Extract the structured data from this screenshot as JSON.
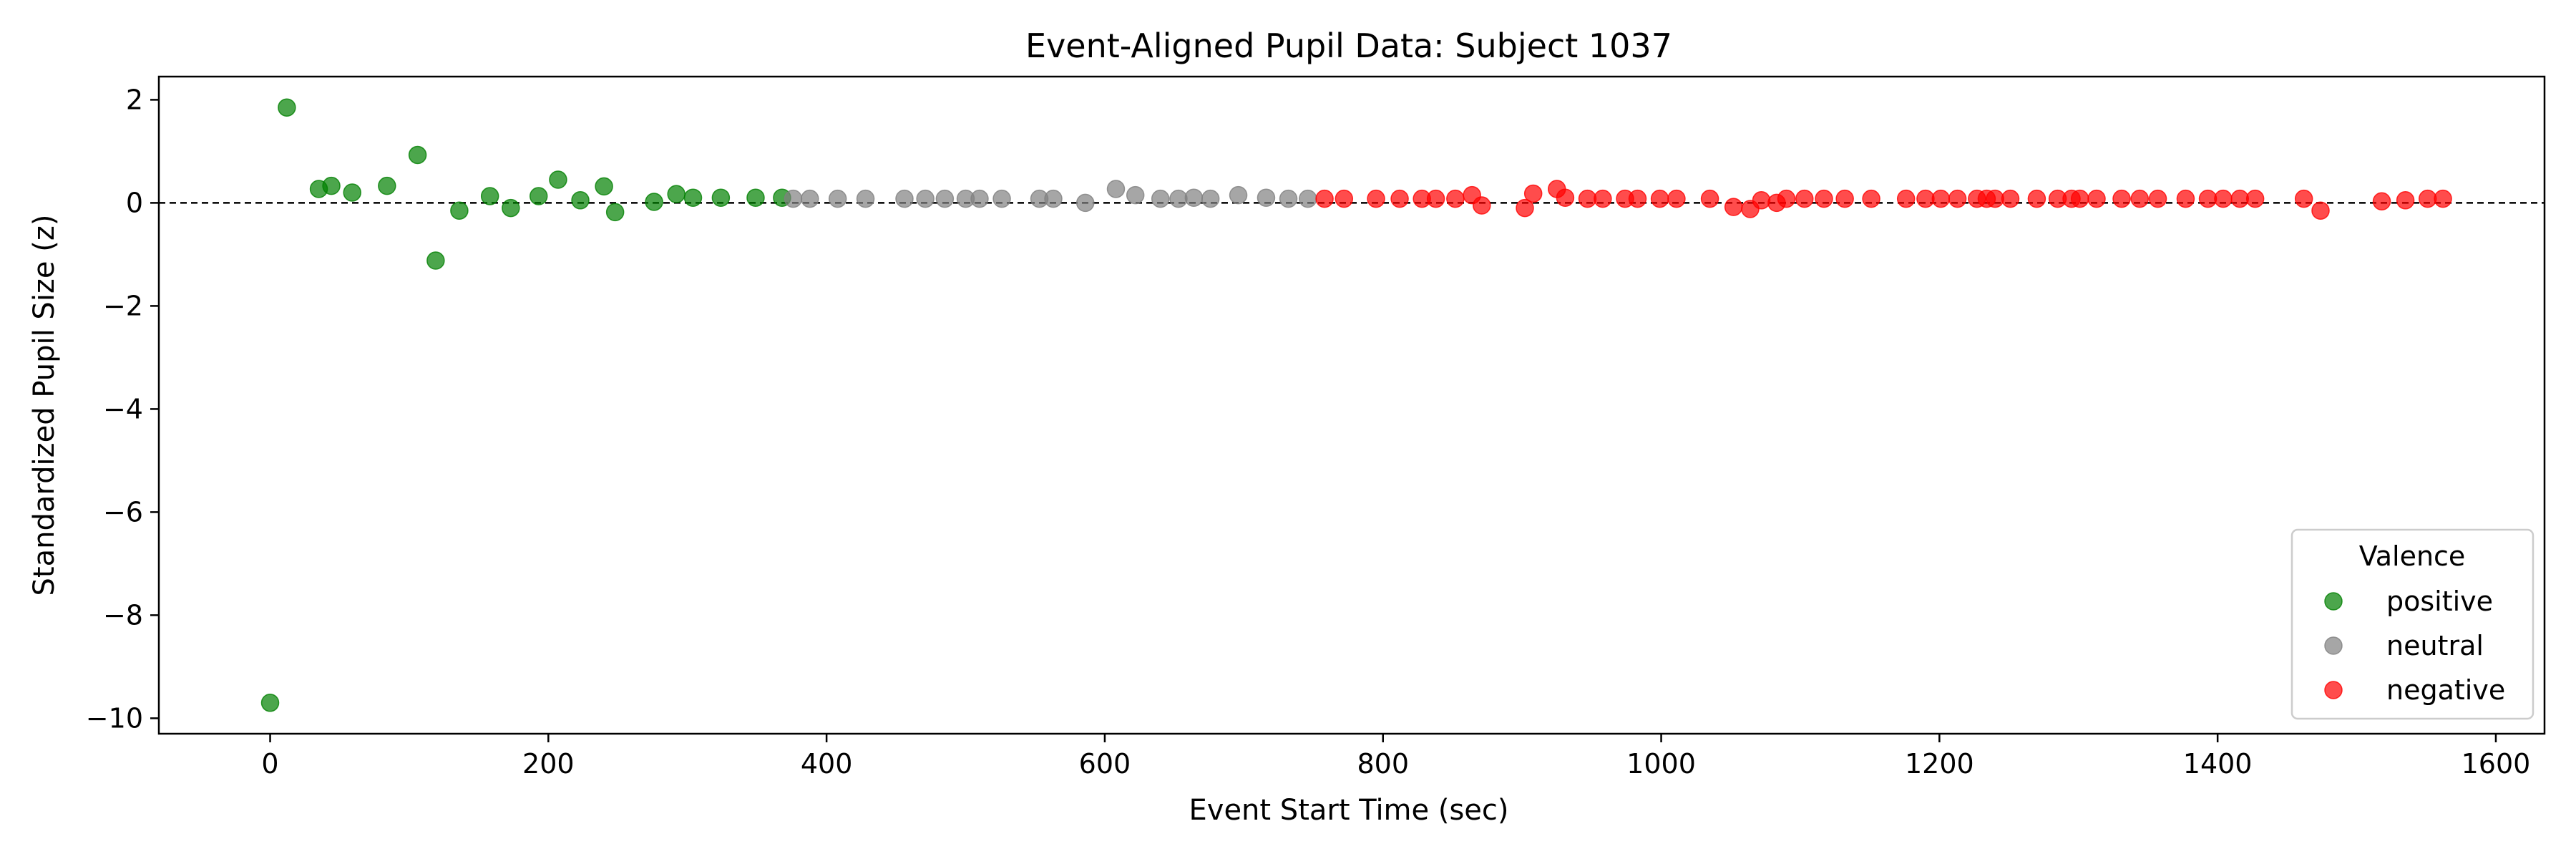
{
  "chart_data": {
    "type": "scatter",
    "title": "Event-Aligned Pupil Data: Subject 1037",
    "xlabel": "Event Start Time (sec)",
    "ylabel": "Standardized Pupil Size (z)",
    "xlim": [
      -80,
      1635
    ],
    "ylim": [
      -10.3,
      2.45
    ],
    "xticks": [
      0,
      200,
      400,
      600,
      800,
      1000,
      1200,
      1400,
      1600
    ],
    "yticks": [
      2,
      0,
      -2,
      -4,
      -6,
      -8,
      -10
    ],
    "grid": false,
    "reference_line": {
      "y": 0,
      "style": "dashed",
      "color": "#000000"
    },
    "legend": {
      "title": "Valence",
      "placement": "lower-right"
    },
    "series": [
      {
        "name": "positive",
        "color": "#008000",
        "x": [
          0,
          12,
          35,
          44,
          59,
          84,
          106,
          119,
          136,
          158,
          173,
          193,
          207,
          223,
          240,
          248,
          276,
          292,
          304,
          324,
          349,
          368
        ],
        "y": [
          -9.7,
          1.85,
          0.27,
          0.33,
          0.2,
          0.33,
          0.93,
          -1.12,
          -0.15,
          0.13,
          -0.1,
          0.13,
          0.45,
          0.05,
          0.32,
          -0.18,
          0.02,
          0.17,
          0.1,
          0.1,
          0.1,
          0.1
        ]
      },
      {
        "name": "neutral",
        "color": "#808080",
        "x": [
          376,
          388,
          408,
          428,
          456,
          471,
          485,
          500,
          510,
          526,
          553,
          563,
          586,
          608,
          622,
          640,
          653,
          664,
          676,
          696,
          716,
          732,
          746
        ],
        "y": [
          0.08,
          0.08,
          0.08,
          0.08,
          0.08,
          0.08,
          0.08,
          0.08,
          0.08,
          0.08,
          0.08,
          0.08,
          0.0,
          0.27,
          0.15,
          0.08,
          0.08,
          0.1,
          0.08,
          0.15,
          0.1,
          0.08,
          0.08
        ],
        "fill_opacity": 0.7
      },
      {
        "name": "negative",
        "color": "#ff0000",
        "x": [
          758,
          772,
          795,
          812,
          828,
          838,
          852,
          864,
          871,
          902,
          908,
          925,
          931,
          947,
          958,
          974,
          983,
          999,
          1011,
          1035,
          1052,
          1064,
          1072,
          1083,
          1090,
          1103,
          1117,
          1132,
          1151,
          1176,
          1190,
          1201,
          1213,
          1227,
          1234,
          1240,
          1251,
          1270,
          1285,
          1295,
          1301,
          1313,
          1331,
          1344,
          1357,
          1377,
          1393,
          1404,
          1416,
          1427,
          1462,
          1474,
          1518,
          1535,
          1551,
          1562
        ],
        "y": [
          0.08,
          0.08,
          0.08,
          0.08,
          0.08,
          0.08,
          0.08,
          0.15,
          -0.05,
          -0.1,
          0.18,
          0.27,
          0.1,
          0.08,
          0.08,
          0.08,
          0.08,
          0.08,
          0.08,
          0.08,
          -0.08,
          -0.12,
          0.05,
          0.0,
          0.08,
          0.08,
          0.08,
          0.08,
          0.08,
          0.08,
          0.08,
          0.08,
          0.08,
          0.08,
          0.08,
          0.08,
          0.08,
          0.08,
          0.08,
          0.08,
          0.08,
          0.08,
          0.08,
          0.08,
          0.08,
          0.08,
          0.08,
          0.08,
          0.08,
          0.08,
          0.08,
          -0.15,
          0.03,
          0.05,
          0.08,
          0.08
        ]
      }
    ]
  }
}
